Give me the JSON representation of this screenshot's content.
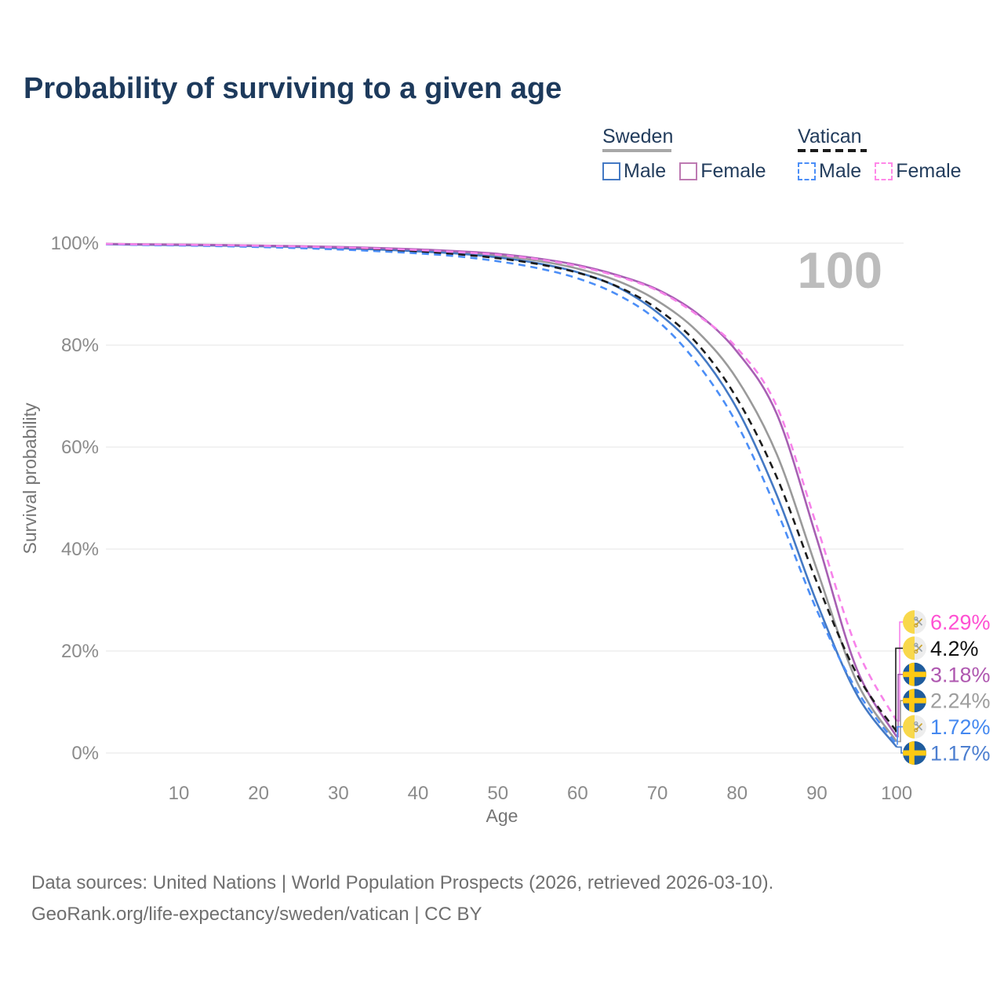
{
  "title": "Probability of surviving to a given age",
  "watermark": "100",
  "legend": {
    "groups": [
      {
        "id": "sweden",
        "label": "Sweden",
        "style": "solid",
        "rule_color": "#a8a8a8",
        "items": [
          {
            "label": "Male",
            "color": "#4479c4",
            "dashed": false
          },
          {
            "label": "Female",
            "color": "#bd7ab2",
            "dashed": false
          }
        ]
      },
      {
        "id": "vatican",
        "label": "Vatican",
        "style": "dashed",
        "rule_color": "#1b1b1b",
        "items": [
          {
            "label": "Male",
            "color": "#4b8ef7",
            "dashed": true
          },
          {
            "label": "Female",
            "color": "#ff88e8",
            "dashed": true
          }
        ]
      }
    ]
  },
  "chart_data": {
    "type": "line",
    "title": "Probability of surviving to a given age",
    "xlabel": "Age",
    "ylabel": "Survival probability",
    "x_domain": [
      0,
      100
    ],
    "y_domain": [
      0,
      100
    ],
    "xticks": [
      10,
      20,
      30,
      40,
      50,
      60,
      70,
      80,
      90,
      100
    ],
    "yticks": [
      0,
      20,
      40,
      60,
      80,
      100
    ],
    "ytick_suffix": "%",
    "grid": true,
    "legend_position": "top-right",
    "x": [
      0,
      5,
      10,
      15,
      20,
      25,
      30,
      35,
      40,
      45,
      50,
      55,
      60,
      65,
      70,
      75,
      80,
      85,
      90,
      95,
      100
    ],
    "series": [
      {
        "id": "sweden-total",
        "name": "Sweden (total)",
        "country": "Sweden",
        "group": "Total",
        "color": "#9a9a9a",
        "dashed": false,
        "values": [
          99.82,
          99.74,
          99.67,
          99.58,
          99.47,
          99.33,
          99.14,
          98.9,
          98.59,
          98.19,
          97.55,
          96.55,
          95.0,
          92.6,
          88.7,
          82.7,
          73.3,
          58.5,
          36.0,
          14.0,
          2.24
        ]
      },
      {
        "id": "sweden-male",
        "name": "Sweden Male",
        "country": "Sweden",
        "group": "Male",
        "color": "#4479c4",
        "dashed": false,
        "values": [
          99.8,
          99.7,
          99.62,
          99.52,
          99.4,
          99.24,
          99.02,
          98.75,
          98.4,
          97.95,
          97.2,
          96.05,
          94.3,
          91.4,
          86.4,
          79.0,
          67.5,
          50.5,
          29.5,
          11.5,
          1.17
        ]
      },
      {
        "id": "sweden-female",
        "name": "Sweden Female",
        "country": "Sweden",
        "group": "Female",
        "color": "#a75fb3",
        "dashed": false,
        "values": [
          99.85,
          99.78,
          99.72,
          99.64,
          99.54,
          99.42,
          99.26,
          99.05,
          98.78,
          98.42,
          97.9,
          97.0,
          95.7,
          93.7,
          90.9,
          86.2,
          78.7,
          66.4,
          42.0,
          16.5,
          3.18
        ]
      },
      {
        "id": "vatican-total",
        "name": "Vatican (total)",
        "country": "Vatican",
        "group": "Total",
        "color": "#1c1c1c",
        "dashed": true,
        "values": [
          99.81,
          99.71,
          99.62,
          99.51,
          99.37,
          99.19,
          98.96,
          98.67,
          98.31,
          97.81,
          97.05,
          95.9,
          94.2,
          91.5,
          87.1,
          80.3,
          69.5,
          54.0,
          33.5,
          15.5,
          4.2
        ]
      },
      {
        "id": "vatican-male",
        "name": "Vatican Male",
        "country": "Vatican",
        "group": "Male",
        "color": "#4b8ef7",
        "dashed": true,
        "values": [
          99.78,
          99.66,
          99.55,
          99.42,
          99.25,
          99.03,
          98.76,
          98.42,
          98.0,
          97.4,
          96.45,
          95.1,
          93.1,
          89.9,
          84.8,
          76.4,
          64.5,
          47.5,
          28.0,
          12.3,
          1.72
        ]
      },
      {
        "id": "vatican-female",
        "name": "Vatican Female",
        "country": "Vatican",
        "group": "Female",
        "color": "#f783ea",
        "dashed": true,
        "values": [
          99.84,
          99.76,
          99.69,
          99.6,
          99.49,
          99.35,
          99.17,
          98.94,
          98.64,
          98.24,
          97.72,
          96.85,
          95.5,
          93.5,
          90.7,
          85.9,
          79.4,
          67.9,
          44.5,
          20.5,
          6.29
        ]
      }
    ],
    "end_labels": [
      {
        "series": "vatican-female",
        "text": "6.29%",
        "value": 6.29,
        "color": "#ff50d2",
        "flag": "vatican"
      },
      {
        "series": "vatican-total",
        "text": "4.2%",
        "value": 4.2,
        "color": "#111111",
        "flag": "vatican"
      },
      {
        "series": "sweden-female",
        "text": "3.18%",
        "value": 3.18,
        "color": "#af58b0",
        "flag": "sweden"
      },
      {
        "series": "sweden-total",
        "text": "2.24%",
        "value": 2.24,
        "color": "#9d9d9d",
        "flag": "sweden"
      },
      {
        "series": "vatican-male",
        "text": "1.72%",
        "value": 1.72,
        "color": "#4488f0",
        "flag": "vatican"
      },
      {
        "series": "sweden-male",
        "text": "1.17%",
        "value": 1.17,
        "color": "#4d7fd0",
        "flag": "sweden"
      }
    ],
    "flag_colors": {
      "sweden": {
        "field": "#1f5c9d",
        "cross": "#fdc913"
      },
      "vatican": {
        "left": "#f8d84b",
        "right": "#ededed",
        "key_gold": "#c9a22b",
        "key_gray": "#97a0a8"
      }
    }
  },
  "footer": {
    "line1": "Data sources: United Nations | World Population Prospects (2026, retrieved 2026-03-10).",
    "line2": "GeoRank.org/life-expectancy/sweden/vatican | CC BY"
  }
}
